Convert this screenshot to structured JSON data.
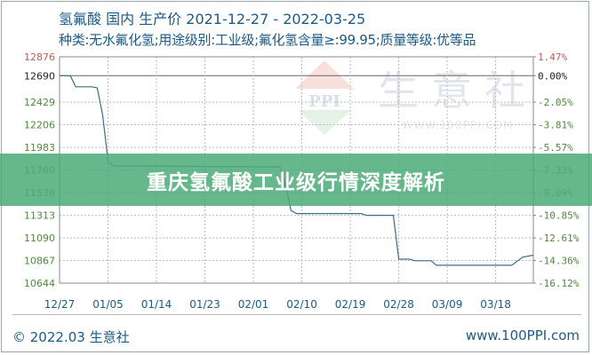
{
  "header": {
    "title": "氢氟酸 国内 生产价 2021-12-27 - 2022-03-25",
    "subtitle": "种类:无水氟化氢;用途级别:工业级;氟化氢含量≥:99.95;质量等级:优等品"
  },
  "banner": {
    "text": "重庆氢氟酸工业级行情深度解析"
  },
  "watermark": {
    "logo": "PPI",
    "name": "生意社",
    "url": "WWW.100PPI.COM"
  },
  "footer": {
    "copyright": "© 2022.03 生意社",
    "site": "www.100PPI.com"
  },
  "colors": {
    "line": "#3d6f86",
    "up_label": "#c0605a",
    "base_label": "#222222",
    "down_label": "#4e8a3c",
    "banner": "#4caa78",
    "title": "#1c5a86"
  },
  "chart_data": {
    "type": "line",
    "title": "氢氟酸 国内 生产价 2021-12-27 - 2022-03-25",
    "xlim": [
      "2021-12-27",
      "2022-03-25"
    ],
    "ylim": [
      10644,
      12876
    ],
    "baseline": 12690,
    "grid": true,
    "x_ticks": [
      "12/27",
      "01/05",
      "01/14",
      "01/23",
      "02/01",
      "02/10",
      "02/19",
      "02/28",
      "03/09",
      "03/18"
    ],
    "y_ticks_left": [
      "12876",
      "12690",
      "12429",
      "12206",
      "11983",
      "11760",
      "11536",
      "11313",
      "11090",
      "10867",
      "10644"
    ],
    "y_ticks_right": [
      "1.47%",
      "0.00%",
      "-2.05%",
      "-3.81%",
      "-5.57%",
      "-7.33%",
      "-9.09%",
      "-10.85%",
      "-12.61%",
      "-14.36%",
      "-16.12%"
    ],
    "series": [
      {
        "points": [
          [
            "2021-12-27",
            12690
          ],
          [
            "2021-12-29",
            12690
          ],
          [
            "2021-12-30",
            12580
          ],
          [
            "2022-01-02",
            12580
          ],
          [
            "2022-01-03",
            12570
          ],
          [
            "2022-01-04",
            12300
          ],
          [
            "2022-01-05",
            11850
          ],
          [
            "2022-01-06",
            11800
          ],
          [
            "2022-02-06",
            11790
          ],
          [
            "2022-02-07",
            11600
          ],
          [
            "2022-02-08",
            11360
          ],
          [
            "2022-02-09",
            11330
          ],
          [
            "2022-02-21",
            11330
          ],
          [
            "2022-02-22",
            11313
          ],
          [
            "2022-02-27",
            11313
          ],
          [
            "2022-02-28",
            10880
          ],
          [
            "2022-03-02",
            10880
          ],
          [
            "2022-03-03",
            10865
          ],
          [
            "2022-03-06",
            10865
          ],
          [
            "2022-03-07",
            10820
          ],
          [
            "2022-03-21",
            10820
          ],
          [
            "2022-03-23",
            10900
          ],
          [
            "2022-03-25",
            10920
          ]
        ]
      }
    ]
  }
}
